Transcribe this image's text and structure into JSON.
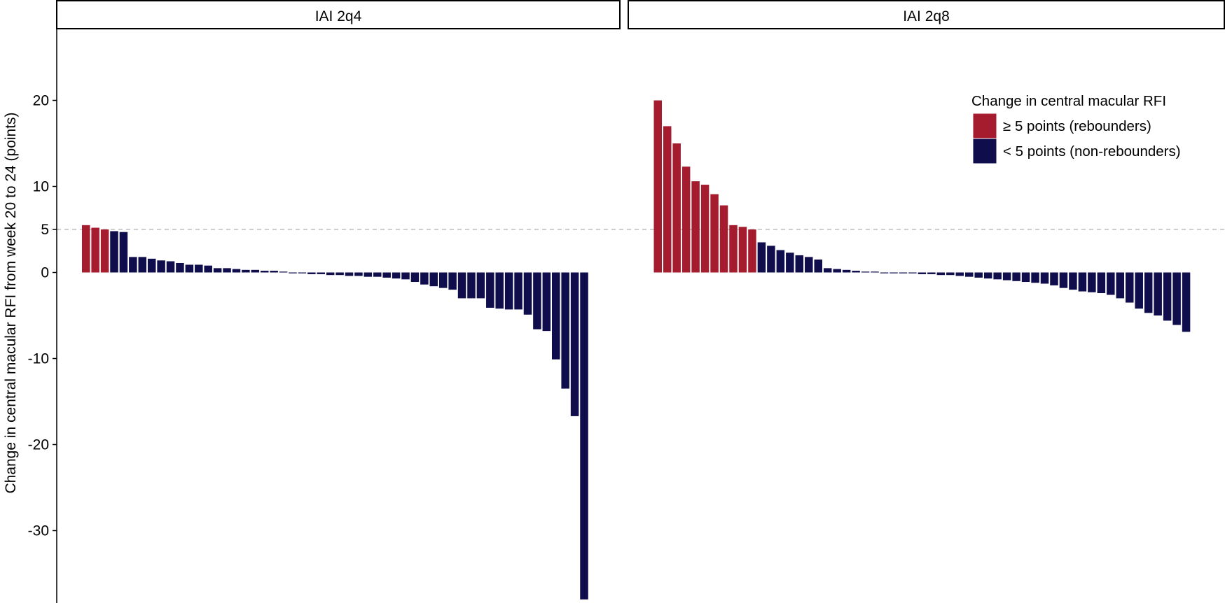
{
  "chart_data": {
    "type": "bar",
    "ylabel": "Change in central macular RFI from week 20 to 24 (points)",
    "yticks": [
      20,
      10,
      5,
      0,
      -10,
      -20,
      -30
    ],
    "ylim": [
      -38,
      28.5
    ],
    "reference_line": 5,
    "grid": false,
    "legend": {
      "position": "top-right",
      "title": "Change in central macular RFI",
      "entries": [
        {
          "key": "rebounder",
          "label": "≥ 5 points (rebounders)",
          "color": "#a51c2e"
        },
        {
          "key": "nonrebounder",
          "label": "< 5 points (non-rebounders)",
          "color": "#0f0d4b"
        }
      ]
    },
    "panels": [
      {
        "title": "IAI 2q4",
        "values": [
          5.5,
          5.2,
          5.0,
          4.8,
          4.7,
          1.8,
          1.8,
          1.6,
          1.4,
          1.3,
          1.1,
          0.9,
          0.9,
          0.8,
          0.5,
          0.5,
          0.4,
          0.3,
          0.3,
          0.2,
          0.2,
          0.1,
          -0.1,
          -0.1,
          -0.2,
          -0.2,
          -0.3,
          -0.3,
          -0.4,
          -0.4,
          -0.5,
          -0.5,
          -0.6,
          -0.7,
          -0.8,
          -1.1,
          -1.4,
          -1.6,
          -1.8,
          -2.0,
          -3.0,
          -3.0,
          -3.0,
          -4.1,
          -4.2,
          -4.3,
          -4.3,
          -4.9,
          -6.6,
          -6.8,
          -10.1,
          -13.5,
          -16.7,
          -38.0
        ]
      },
      {
        "title": "IAI 2q8",
        "values": [
          20.0,
          17.0,
          15.0,
          12.3,
          10.6,
          10.2,
          9.1,
          7.8,
          5.5,
          5.3,
          5.0,
          3.5,
          3.1,
          2.6,
          2.3,
          2.0,
          1.8,
          1.5,
          0.5,
          0.4,
          0.3,
          0.2,
          0.1,
          0.1,
          0.0,
          0.0,
          -0.1,
          -0.1,
          -0.2,
          -0.2,
          -0.3,
          -0.3,
          -0.4,
          -0.5,
          -0.6,
          -0.7,
          -0.8,
          -0.9,
          -1.0,
          -1.1,
          -1.2,
          -1.3,
          -1.5,
          -1.8,
          -2.0,
          -2.2,
          -2.3,
          -2.4,
          -2.6,
          -3.0,
          -3.5,
          -4.2,
          -4.7,
          -5.0,
          -5.6,
          -6.1,
          -6.9
        ]
      }
    ]
  }
}
